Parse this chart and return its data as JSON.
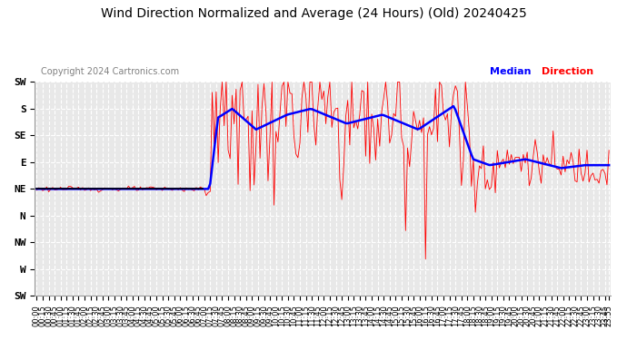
{
  "title": "Wind Direction Normalized and Average (24 Hours) (Old) 20240425",
  "copyright": "Copyright 2024 Cartronics.com",
  "legend_median": "Median",
  "legend_direction": "Direction",
  "legend_median_color": "#0000ff",
  "legend_direction_color": "#ff0000",
  "black_line_color": "#000000",
  "background_color": "#ffffff",
  "plot_bg_color": "#e8e8e8",
  "grid_color": "#ffffff",
  "title_fontsize": 10,
  "copyright_fontsize": 7,
  "legend_fontsize": 8,
  "xlabel_fontsize": 6,
  "ylabel_fontsize": 8,
  "ytick_labels": [
    "SW",
    "W",
    "NW",
    "N",
    "NE",
    "E",
    "SE",
    "S",
    "SW"
  ],
  "ytick_values": [
    0,
    45,
    90,
    135,
    180,
    225,
    270,
    315,
    360
  ],
  "ylim": [
    0,
    360
  ],
  "xlim_min": 0,
  "xlim_max": 287
}
